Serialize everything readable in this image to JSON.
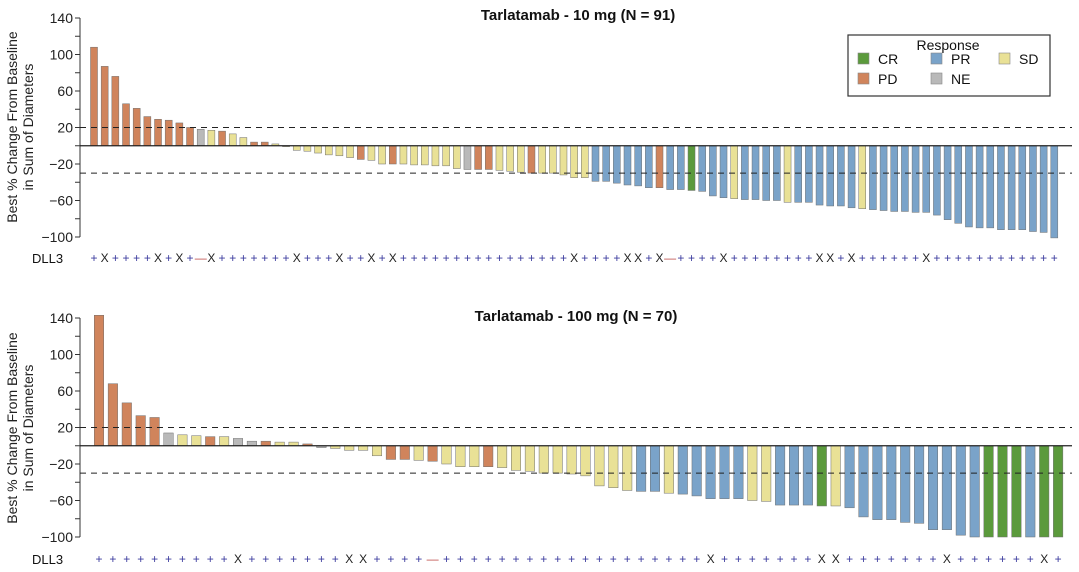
{
  "colors": {
    "CR": "#5b9a3c",
    "PR": "#7aa3c9",
    "SD": "#e9e196",
    "PD": "#d0845c",
    "NE": "#b9b9b9",
    "plus": "#3b3b9e",
    "x": "#222222",
    "minus": "#c0504d"
  },
  "legend": {
    "title": "Response",
    "items": [
      {
        "code": "CR",
        "label": "CR"
      },
      {
        "code": "PR",
        "label": "PR"
      },
      {
        "code": "SD",
        "label": "SD"
      },
      {
        "code": "PD",
        "label": "PD"
      },
      {
        "code": "NE",
        "label": "NE"
      }
    ]
  },
  "chart_data": [
    {
      "type": "bar",
      "title": "Tarlatamab - 10 mg (N = 91)",
      "ylabel": [
        "Best % Change From Baseline",
        "in Sum of Diameters"
      ],
      "ylim": [
        -100,
        140
      ],
      "yticks": [
        140,
        100,
        60,
        20,
        -20,
        -60,
        -100
      ],
      "reference_lines": [
        20,
        -30
      ],
      "row_label": "DLL3",
      "values": [
        108,
        87,
        76,
        46,
        41,
        32,
        29,
        28,
        25,
        20,
        18,
        17,
        16,
        13,
        9,
        4,
        4,
        2,
        -1,
        -5,
        -6,
        -8,
        -10,
        -11,
        -13,
        -15,
        -16,
        -20,
        -20,
        -20,
        -21,
        -21,
        -22,
        -22,
        -25,
        -26,
        -26,
        -26,
        -27,
        -28,
        -29,
        -30,
        -30,
        -30,
        -32,
        -35,
        -35,
        -39,
        -39,
        -41,
        -43,
        -44,
        -46,
        -46,
        -48,
        -48,
        -49,
        -50,
        -55,
        -57,
        -58,
        -59,
        -59,
        -60,
        -60,
        -62,
        -62,
        -62,
        -65,
        -66,
        -66,
        -68,
        -69,
        -70,
        -71,
        -72,
        -72,
        -73,
        -73,
        -76,
        -81,
        -85,
        -89,
        -90,
        -90,
        -92,
        -92,
        -92,
        -94,
        -95,
        -101
      ],
      "response": [
        "PD",
        "PD",
        "PD",
        "PD",
        "PD",
        "PD",
        "PD",
        "PD",
        "PD",
        "PD",
        "NE",
        "SD",
        "PD",
        "SD",
        "SD",
        "PD",
        "PD",
        "SD",
        "SD",
        "SD",
        "SD",
        "SD",
        "SD",
        "SD",
        "SD",
        "PD",
        "SD",
        "SD",
        "PD",
        "SD",
        "SD",
        "SD",
        "SD",
        "SD",
        "SD",
        "NE",
        "PD",
        "PD",
        "SD",
        "SD",
        "SD",
        "PD",
        "SD",
        "SD",
        "SD",
        "SD",
        "SD",
        "PR",
        "PR",
        "PR",
        "PR",
        "PR",
        "PR",
        "PD",
        "PR",
        "PR",
        "CR",
        "PR",
        "PR",
        "PR",
        "SD",
        "PR",
        "PR",
        "PR",
        "PR",
        "SD",
        "PR",
        "PR",
        "PR",
        "PR",
        "PR",
        "PR",
        "SD",
        "PR",
        "PR",
        "PR",
        "PR",
        "PR",
        "PR",
        "PR",
        "PR",
        "PR",
        "PR",
        "PR",
        "PR",
        "PR",
        "PR",
        "PR",
        "PR",
        "PR",
        "PR"
      ],
      "dll3": [
        "+",
        "x",
        "+",
        "+",
        "+",
        "+",
        "x",
        "+",
        "x",
        "+",
        "-",
        "x",
        "+",
        "+",
        "+",
        "+",
        "+",
        "+",
        "+",
        "x",
        "+",
        "+",
        "+",
        "x",
        "+",
        "+",
        "x",
        "+",
        "x",
        "+",
        "+",
        "+",
        "+",
        "+",
        "+",
        "+",
        "+",
        "+",
        "+",
        "+",
        "+",
        "+",
        "+",
        "+",
        "+",
        "x",
        "+",
        "+",
        "+",
        "+",
        "x",
        "x",
        "+",
        "x",
        "-",
        "+",
        "+",
        "+",
        "+",
        "x",
        "+",
        "+",
        "+",
        "+",
        "+",
        "+",
        "+",
        "+",
        "x",
        "x",
        "+",
        "x",
        "+",
        "+",
        "+",
        "+",
        "+",
        "+",
        "x",
        "+",
        "+",
        "+",
        "+",
        "+",
        "+",
        "+",
        "+",
        "+",
        "+",
        "+",
        "+"
      ]
    },
    {
      "type": "bar",
      "title": "Tarlatamab - 100 mg (N = 70)",
      "ylabel": [
        "Best % Change From Baseline",
        "in Sum of Diameters"
      ],
      "ylim": [
        -100,
        140
      ],
      "yticks": [
        140,
        100,
        60,
        20,
        -20,
        -60,
        -100
      ],
      "reference_lines": [
        20,
        -30
      ],
      "row_label": "DLL3",
      "values": [
        143,
        68,
        47,
        33,
        31,
        14,
        12,
        11,
        10,
        10,
        8,
        5,
        5,
        4,
        4,
        2,
        -2,
        -3,
        -5,
        -5,
        -11,
        -15,
        -15,
        -16,
        -17,
        -20,
        -23,
        -23,
        -23,
        -24,
        -27,
        -28,
        -30,
        -30,
        -31,
        -33,
        -44,
        -46,
        -49,
        -50,
        -50,
        -52,
        -53,
        -55,
        -58,
        -58,
        -58,
        -60,
        -61,
        -65,
        -65,
        -65,
        -66,
        -66,
        -68,
        -78,
        -81,
        -81,
        -84,
        -85,
        -92,
        -92,
        -98,
        -100,
        -100,
        -100,
        -100,
        -100,
        -100,
        -100
      ],
      "response": [
        "PD",
        "PD",
        "PD",
        "PD",
        "PD",
        "NE",
        "SD",
        "SD",
        "PD",
        "SD",
        "NE",
        "NE",
        "PD",
        "SD",
        "SD",
        "PD",
        "NE",
        "SD",
        "SD",
        "SD",
        "SD",
        "PD",
        "PD",
        "SD",
        "PD",
        "SD",
        "SD",
        "SD",
        "PD",
        "SD",
        "SD",
        "SD",
        "SD",
        "SD",
        "SD",
        "SD",
        "SD",
        "SD",
        "SD",
        "PR",
        "PR",
        "SD",
        "PR",
        "PR",
        "PR",
        "PR",
        "PR",
        "SD",
        "SD",
        "PR",
        "PR",
        "PR",
        "CR",
        "SD",
        "PR",
        "PR",
        "PR",
        "PR",
        "PR",
        "PR",
        "PR",
        "PR",
        "PR",
        "PR",
        "CR",
        "CR",
        "CR",
        "PR",
        "CR",
        "CR"
      ],
      "dll3": [
        "+",
        "+",
        "+",
        "+",
        "+",
        "+",
        "+",
        "+",
        "+",
        "+",
        "x",
        "+",
        "+",
        "+",
        "+",
        "+",
        "+",
        "+",
        "x",
        "x",
        "+",
        "+",
        "+",
        "+",
        "-",
        "+",
        "+",
        "+",
        "+",
        "+",
        "+",
        "+",
        "+",
        "+",
        "+",
        "+",
        "+",
        "+",
        "+",
        "+",
        "+",
        "+",
        "+",
        "+",
        "x",
        "+",
        "+",
        "+",
        "+",
        "+",
        "+",
        "+",
        "x",
        "x",
        "+",
        "+",
        "+",
        "+",
        "+",
        "+",
        "+",
        "x",
        "+",
        "+",
        "+",
        "+",
        "+",
        "+",
        "x",
        "+"
      ]
    }
  ]
}
